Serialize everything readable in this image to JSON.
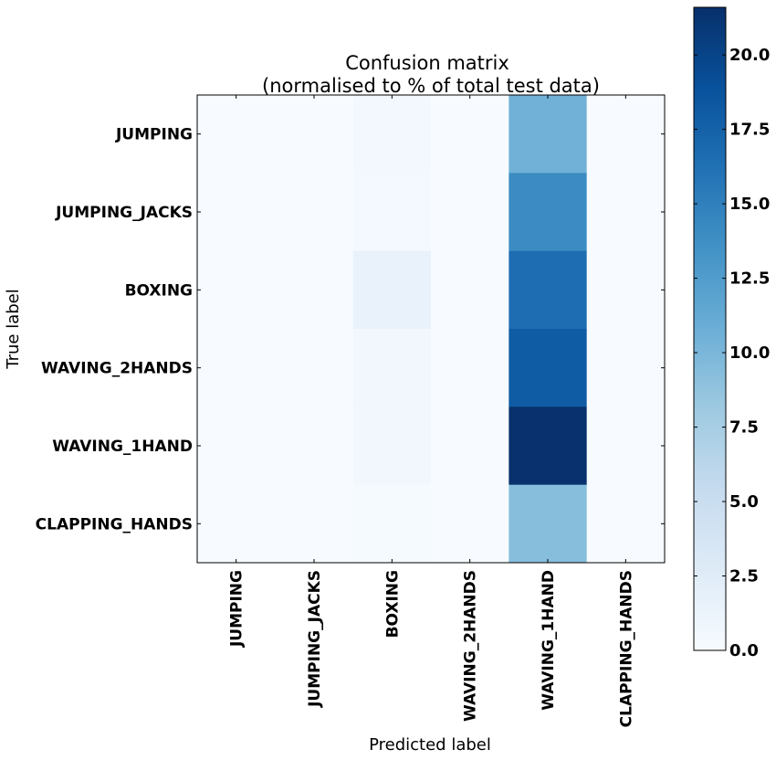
{
  "chart_data": {
    "type": "heatmap",
    "title": [
      "Confusion matrix",
      "(normalised to % of total test data)"
    ],
    "xlabel": "Predicted label",
    "ylabel": "True label",
    "x_categories": [
      "JUMPING",
      "JUMPING_JACKS",
      "BOXING",
      "WAVING_2HANDS",
      "WAVING_1HAND",
      "CLAPPING_HANDS"
    ],
    "y_categories": [
      "JUMPING",
      "JUMPING_JACKS",
      "BOXING",
      "WAVING_2HANDS",
      "WAVING_1HAND",
      "CLAPPING_HANDS"
    ],
    "values": [
      [
        0.0,
        0.0,
        0.5,
        0.0,
        10.5,
        0.0
      ],
      [
        0.0,
        0.0,
        0.4,
        0.0,
        14.0,
        0.0
      ],
      [
        0.0,
        0.0,
        1.5,
        0.0,
        16.5,
        0.0
      ],
      [
        0.0,
        0.0,
        0.6,
        0.0,
        18.0,
        0.0
      ],
      [
        0.0,
        0.0,
        0.7,
        0.0,
        21.5,
        0.0
      ],
      [
        0.0,
        0.0,
        0.2,
        0.0,
        9.3,
        0.0
      ]
    ],
    "colorbar": {
      "min": 0.0,
      "max": 21.6,
      "ticks": [
        0.0,
        2.5,
        5.0,
        7.5,
        10.0,
        12.5,
        15.0,
        17.5,
        20.0
      ],
      "tick_labels": [
        "0.0",
        "2.5",
        "5.0",
        "7.5",
        "10.0",
        "12.5",
        "15.0",
        "17.5",
        "20.0"
      ],
      "colormap": "Blues",
      "colors": [
        "#f7fbff",
        "#deebf7",
        "#c6dbef",
        "#9ecae1",
        "#6baed6",
        "#4292c6",
        "#2171b5",
        "#08519c",
        "#08306b"
      ]
    }
  }
}
